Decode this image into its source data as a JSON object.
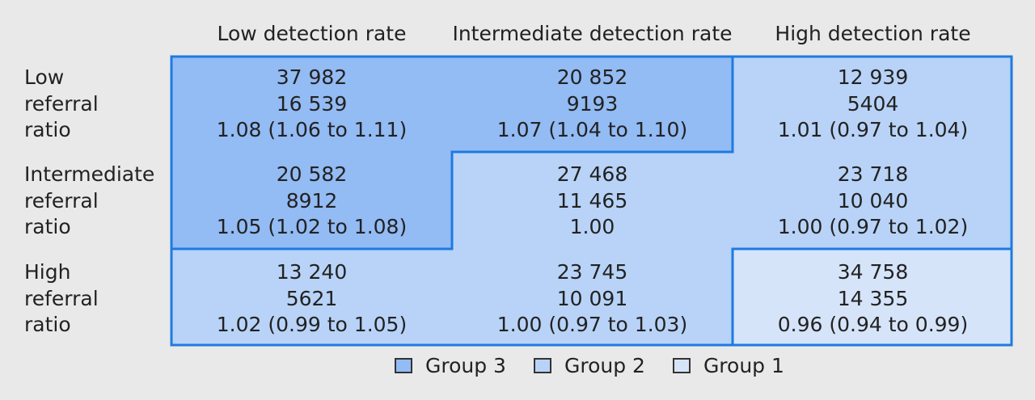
{
  "colors": {
    "group3": "#93bbf4",
    "group2": "#b8d3f7",
    "group1": "#d6e4f9",
    "border": "#1f7ae0",
    "background": "#e9e9ea"
  },
  "column_headers": [
    "Low detection rate",
    "Intermediate detection rate",
    "High detection rate"
  ],
  "row_headers": [
    [
      "Low",
      "referral",
      "ratio"
    ],
    [
      "Intermediate",
      "referral",
      "ratio"
    ],
    [
      "High",
      "referral",
      "ratio"
    ]
  ],
  "cells": [
    [
      {
        "n1": "37 982",
        "n2": "16 539",
        "ratio": "1.08 (1.06 to 1.11)",
        "group": 3
      },
      {
        "n1": "20 852",
        "n2": "9193",
        "ratio": "1.07 (1.04 to 1.10)",
        "group": 3
      },
      {
        "n1": "12 939",
        "n2": "5404",
        "ratio": "1.01 (0.97 to 1.04)",
        "group": 2
      }
    ],
    [
      {
        "n1": "20 582",
        "n2": "8912",
        "ratio": "1.05 (1.02 to 1.08)",
        "group": 3
      },
      {
        "n1": "27 468",
        "n2": "11 465",
        "ratio": "1.00",
        "group": 2
      },
      {
        "n1": "23 718",
        "n2": "10 040",
        "ratio": "1.00 (0.97 to 1.02)",
        "group": 2
      }
    ],
    [
      {
        "n1": "13 240",
        "n2": "5621",
        "ratio": "1.02 (0.99 to 1.05)",
        "group": 2
      },
      {
        "n1": "23 745",
        "n2": "10 091",
        "ratio": "1.00 (0.97 to 1.03)",
        "group": 2
      },
      {
        "n1": "34 758",
        "n2": "14 355",
        "ratio": "0.96 (0.94 to 0.99)",
        "group": 1
      }
    ]
  ],
  "legend": [
    {
      "label": "Group 3",
      "color": "#93bbf4"
    },
    {
      "label": "Group 2",
      "color": "#b8d3f7"
    },
    {
      "label": "Group 1",
      "color": "#d6e4f9"
    }
  ]
}
